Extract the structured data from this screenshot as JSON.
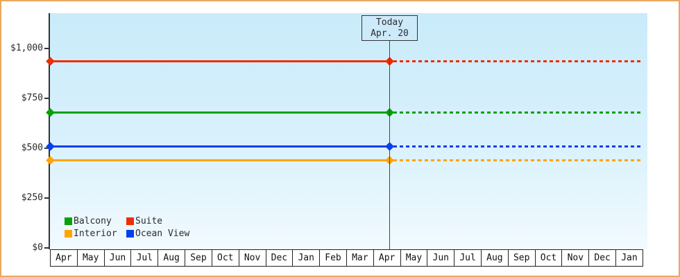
{
  "chart_data": {
    "type": "line",
    "title": "",
    "xlabel": "",
    "ylabel": "",
    "x_labels": [
      "Apr",
      "May",
      "Jun",
      "Jul",
      "Aug",
      "Sep",
      "Oct",
      "Nov",
      "Dec",
      "Jan",
      "Feb",
      "Mar",
      "Apr",
      "May",
      "Jun",
      "Jul",
      "Aug",
      "Sep",
      "Oct",
      "Nov",
      "Dec",
      "Jan"
    ],
    "y_ticks": [
      {
        "label": "$0",
        "value": 0
      },
      {
        "label": "$250",
        "value": 250
      },
      {
        "label": "$500",
        "value": 500
      },
      {
        "label": "$750",
        "value": 750
      },
      {
        "label": "$1,000",
        "value": 1000
      }
    ],
    "ylim": [
      0,
      1175
    ],
    "grid": false,
    "legend_position": "bottom-left-inside",
    "series": [
      {
        "name": "Balcony",
        "color": "#0aa00a",
        "value": 680,
        "style_past": "solid",
        "style_future": "dotted"
      },
      {
        "name": "Suite",
        "color": "#ee2d05",
        "value": 935,
        "style_past": "solid",
        "style_future": "dotted"
      },
      {
        "name": "Interior",
        "color": "#ffa502",
        "value": 440,
        "style_past": "solid",
        "style_future": "dotted"
      },
      {
        "name": "Ocean View",
        "color": "#0540f0",
        "value": 510,
        "style_past": "solid",
        "style_future": "dotted"
      }
    ],
    "annotations": [
      {
        "label": "Today",
        "sublabel": "Apr. 20",
        "x_month_index": 12
      }
    ]
  },
  "today_box": {
    "line1": "Today",
    "line2": "Apr. 20"
  },
  "colors": {
    "frame_border": "#eba85f",
    "plot_bg_top": "#c9ebfa",
    "plot_bg_bottom": "#f2fafe",
    "axis": "#333333",
    "text": "#2b2b2b"
  }
}
